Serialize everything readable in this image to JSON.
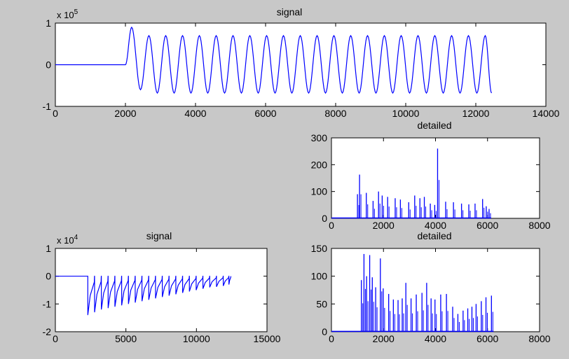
{
  "figure": {
    "background": "#c8c8c8",
    "axes_background": "#ffffff",
    "line_color": "#0000ff"
  },
  "chart_data": [
    {
      "type": "line",
      "title": "signal",
      "xlabel": "",
      "ylabel": "",
      "xlim": [
        0,
        14000
      ],
      "ylim": [
        -1,
        1
      ],
      "y_exponent_label": "x 10",
      "y_exponent_power": "5",
      "xticks": [
        0,
        2000,
        4000,
        6000,
        8000,
        10000,
        12000,
        14000
      ],
      "yticks": [
        -1,
        0,
        1
      ],
      "xtick_labels": [
        "0",
        "2000",
        "4000",
        "6000",
        "8000",
        "10000",
        "12000",
        "14000"
      ],
      "ytick_labels": [
        "-1",
        "0",
        "1"
      ],
      "series": [
        {
          "color": "#0000ff",
          "x": [
            0,
            2000,
            2178,
            2430,
            2670,
            2910,
            3150,
            3390,
            3630,
            3870,
            4110,
            4350,
            4590,
            4830,
            5070,
            5310,
            5550,
            5790,
            6030,
            6270,
            6510,
            6750,
            6990,
            7230,
            7470,
            7710,
            7950,
            8190,
            8430,
            8670,
            8910,
            9150,
            9390,
            9630,
            9870,
            10110,
            10350,
            10590,
            10830,
            11070,
            11310,
            11550,
            11790,
            12030,
            12270,
            12450
          ],
          "y": [
            0,
            0,
            0.9,
            -0.6,
            0.7,
            -0.68,
            0.7,
            -0.68,
            0.7,
            -0.68,
            0.7,
            -0.68,
            0.7,
            -0.68,
            0.7,
            -0.68,
            0.7,
            -0.68,
            0.7,
            -0.68,
            0.7,
            -0.68,
            0.7,
            -0.68,
            0.7,
            -0.68,
            0.7,
            -0.68,
            0.7,
            -0.68,
            0.7,
            -0.68,
            0.7,
            -0.68,
            0.7,
            -0.68,
            0.7,
            -0.68,
            0.7,
            -0.68,
            0.7,
            -0.68,
            0.7,
            -0.68,
            0.7,
            -0.68
          ]
        }
      ],
      "grid": false
    },
    {
      "type": "bar",
      "title": "detailed",
      "xlabel": "",
      "ylabel": "",
      "xlim": [
        0,
        8000
      ],
      "ylim": [
        0,
        300
      ],
      "xticks": [
        0,
        2000,
        4000,
        6000,
        8000
      ],
      "yticks": [
        0,
        100,
        200,
        300
      ],
      "xtick_labels": [
        "0",
        "2000",
        "4000",
        "6000",
        "8000"
      ],
      "ytick_labels": [
        "0",
        "100",
        "200",
        "300"
      ],
      "x": [
        1000,
        1080,
        1340,
        1600,
        1810,
        1950,
        2160,
        2450,
        2650,
        2970,
        3200,
        3400,
        3570,
        3800,
        3970,
        4080,
        4390,
        4690,
        5000,
        5280,
        5520,
        5810,
        5950,
        6060
      ],
      "values": [
        90,
        163,
        95,
        65,
        100,
        85,
        80,
        75,
        70,
        60,
        85,
        75,
        80,
        55,
        50,
        260,
        62,
        60,
        55,
        52,
        55,
        72,
        45,
        35
      ],
      "grid": false
    },
    {
      "type": "line",
      "title": "signal",
      "xlabel": "",
      "ylabel": "",
      "xlim": [
        0,
        15000
      ],
      "ylim": [
        -2,
        1
      ],
      "y_exponent_label": "x 10",
      "y_exponent_power": "4",
      "xticks": [
        0,
        5000,
        10000,
        15000
      ],
      "yticks": [
        -2,
        -1,
        0,
        1
      ],
      "xtick_labels": [
        "0",
        "5000",
        "10000",
        "15000"
      ],
      "ytick_labels": [
        "-2",
        "-1",
        "0",
        "1"
      ],
      "series": [
        {
          "color": "#0000ff",
          "spike_x": [
            2300,
            2780,
            3260,
            3740,
            4220,
            4700,
            5180,
            5660,
            6140,
            6620,
            7100,
            7580,
            8060,
            8540,
            9020,
            9500,
            9980,
            10460,
            10940,
            11420,
            11900,
            12300
          ],
          "spike_y": [
            -1.4,
            -1.3,
            -1.2,
            -1.15,
            -1.1,
            -1.05,
            -1.0,
            -0.95,
            -0.9,
            -0.85,
            -0.8,
            -0.75,
            -0.7,
            -0.65,
            -0.6,
            -0.55,
            -0.5,
            -0.45,
            -0.4,
            -0.38,
            -0.35,
            -0.3
          ]
        }
      ],
      "grid": false
    },
    {
      "type": "bar",
      "title": "detailed",
      "xlabel": "",
      "ylabel": "",
      "xlim": [
        0,
        8000
      ],
      "ylim": [
        0,
        150
      ],
      "xticks": [
        0,
        2000,
        4000,
        6000,
        8000
      ],
      "yticks": [
        0,
        50,
        100,
        150
      ],
      "xtick_labels": [
        "0",
        "2000",
        "4000",
        "6000",
        "8000"
      ],
      "ytick_labels": [
        "0",
        "50",
        "100",
        "150"
      ],
      "x": [
        1150,
        1250,
        1350,
        1470,
        1570,
        1700,
        1880,
        1990,
        2200,
        2380,
        2560,
        2720,
        2860,
        3060,
        3260,
        3480,
        3660,
        3830,
        3980,
        4200,
        4420,
        4660,
        4860,
        5060,
        5240,
        5400,
        5560,
        5760,
        5940,
        6150
      ],
      "values": [
        93,
        140,
        100,
        138,
        98,
        80,
        132,
        78,
        68,
        58,
        57,
        60,
        88,
        60,
        67,
        70,
        88,
        60,
        58,
        67,
        68,
        45,
        32,
        38,
        42,
        45,
        50,
        55,
        62,
        65
      ],
      "grid": false
    }
  ]
}
